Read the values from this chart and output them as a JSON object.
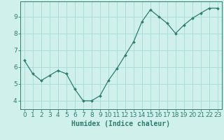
{
  "x": [
    0,
    1,
    2,
    3,
    4,
    5,
    6,
    7,
    8,
    9,
    10,
    11,
    12,
    13,
    14,
    15,
    16,
    17,
    18,
    19,
    20,
    21,
    22,
    23
  ],
  "y": [
    6.4,
    5.6,
    5.2,
    5.5,
    5.8,
    5.6,
    4.7,
    4.0,
    4.0,
    4.3,
    5.2,
    5.9,
    6.7,
    7.5,
    8.7,
    9.4,
    9.0,
    8.6,
    8.0,
    8.5,
    8.9,
    9.2,
    9.5,
    9.5
  ],
  "line_color": "#2e7d6e",
  "marker": "D",
  "markersize": 2.0,
  "linewidth": 0.9,
  "background_color": "#cff0eb",
  "grid_color": "#aaddda",
  "xlabel": "Humidex (Indice chaleur)",
  "xlabel_fontsize": 7,
  "tick_fontsize": 6.5,
  "ylim": [
    3.5,
    9.9
  ],
  "xlim": [
    -0.5,
    23.5
  ],
  "yticks": [
    4,
    5,
    6,
    7,
    8,
    9
  ],
  "xticks": [
    0,
    1,
    2,
    3,
    4,
    5,
    6,
    7,
    8,
    9,
    10,
    11,
    12,
    13,
    14,
    15,
    16,
    17,
    18,
    19,
    20,
    21,
    22,
    23
  ]
}
